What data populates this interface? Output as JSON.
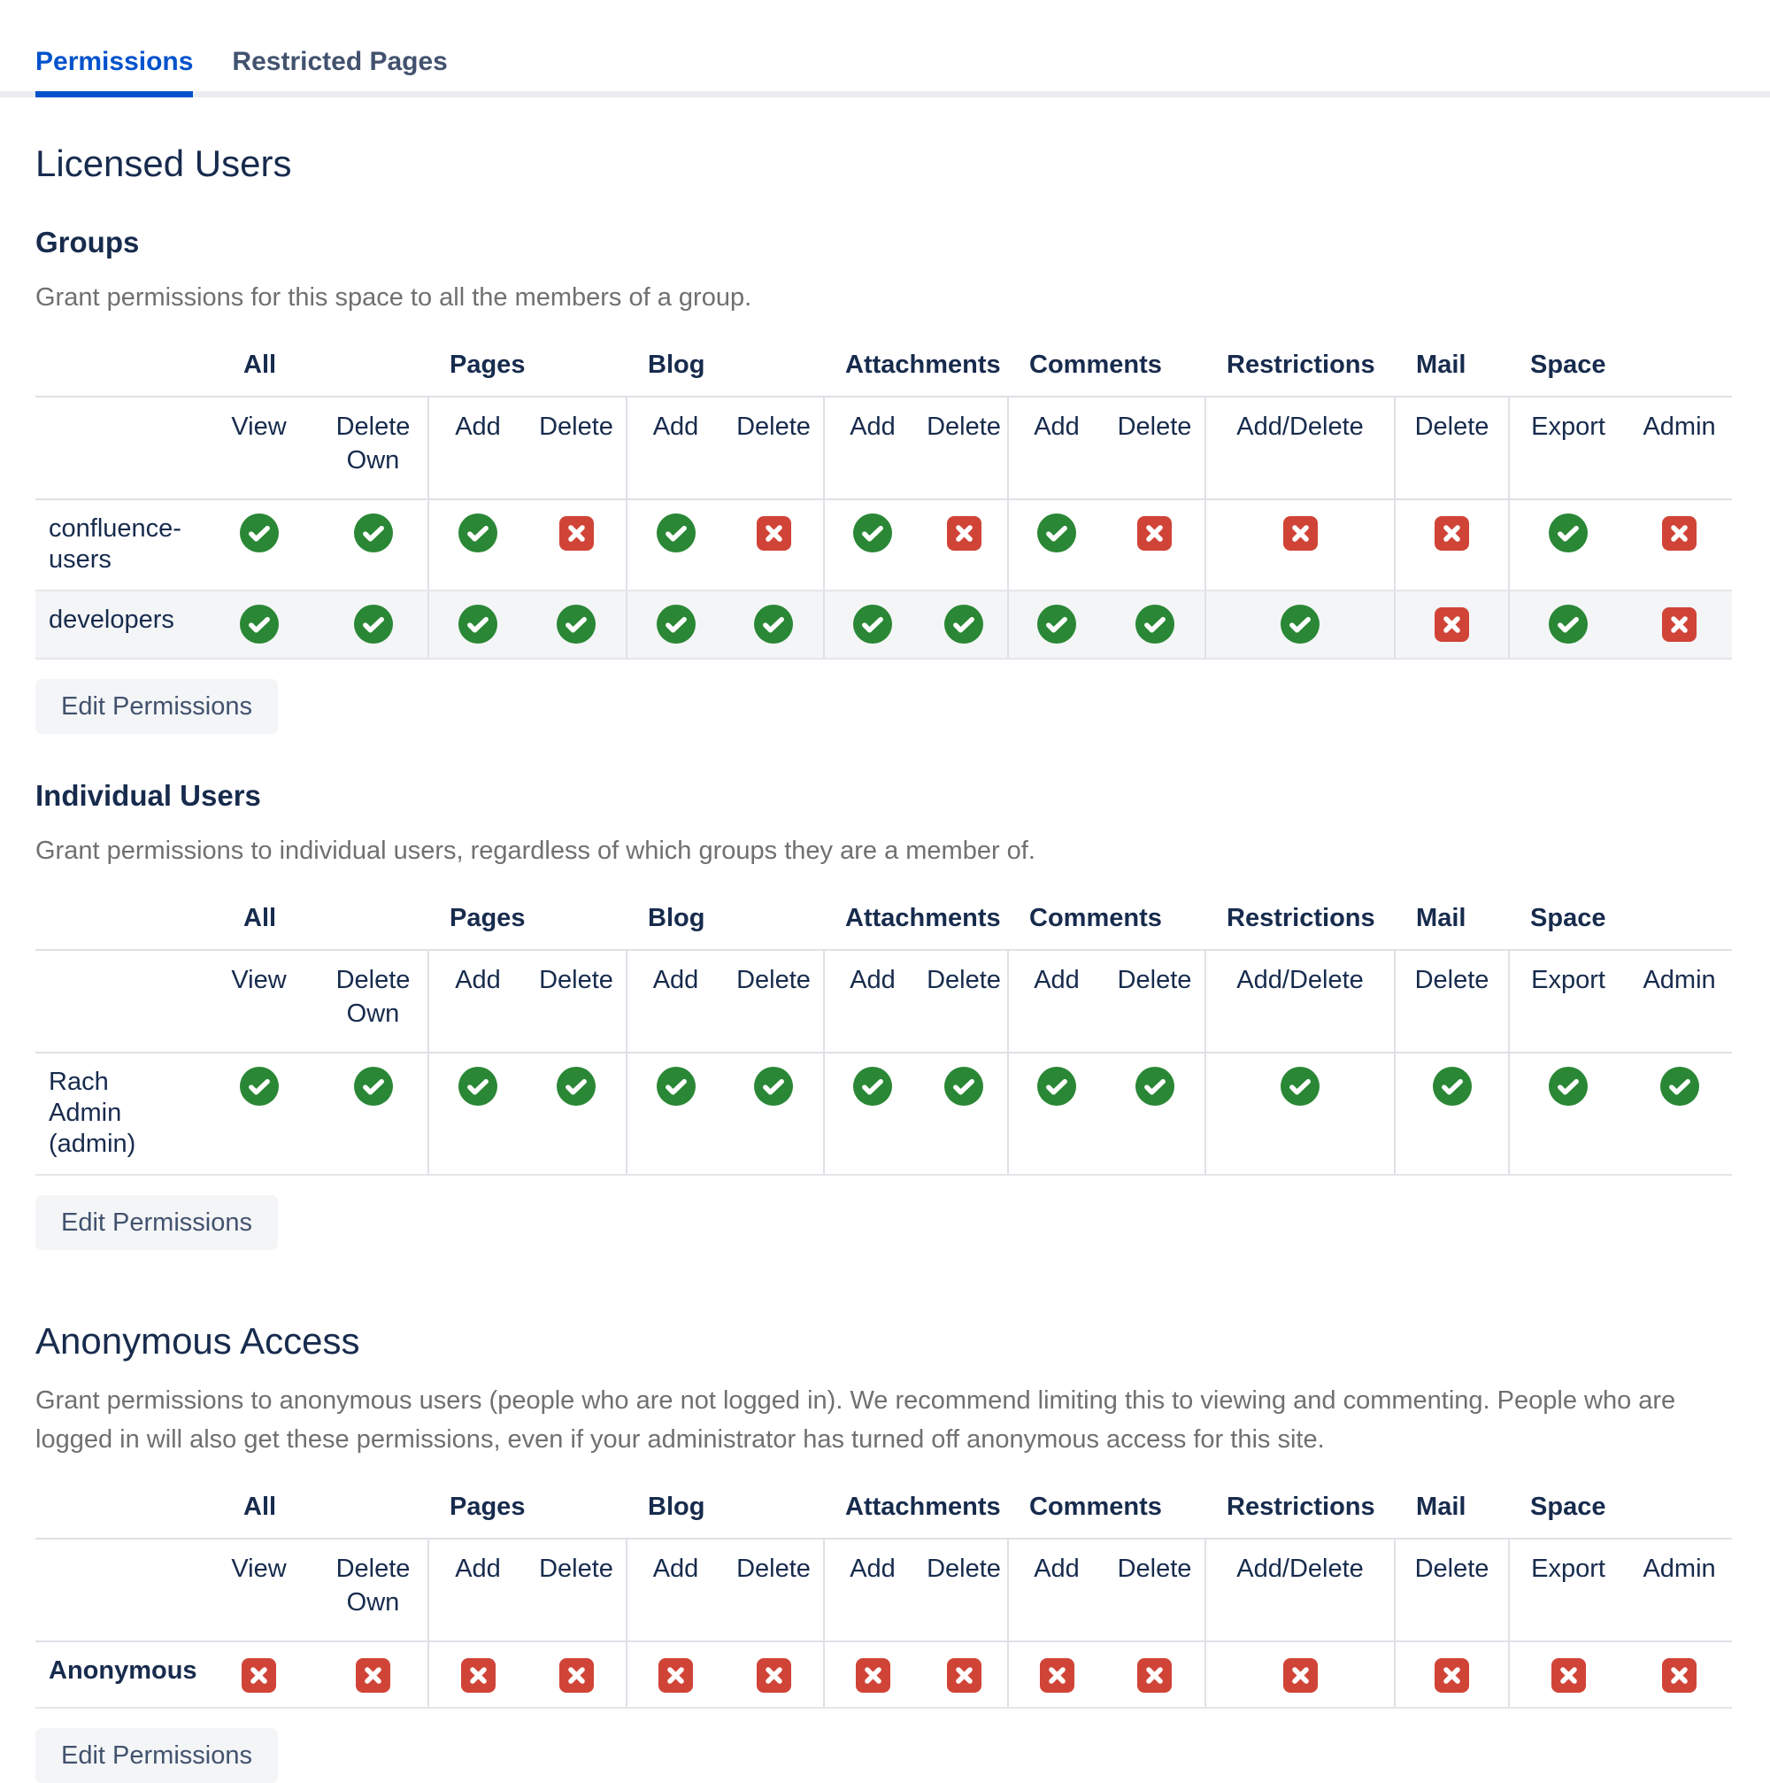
{
  "tabs": {
    "items": [
      {
        "label": "Permissions",
        "active": true
      },
      {
        "label": "Restricted Pages",
        "active": false
      }
    ]
  },
  "page_heading": "Licensed Users",
  "columns": {
    "groups": [
      {
        "label": "All",
        "span": 2
      },
      {
        "label": "Pages",
        "span": 2
      },
      {
        "label": "Blog",
        "span": 2
      },
      {
        "label": "Attachments",
        "span": 2
      },
      {
        "label": "Comments",
        "span": 2
      },
      {
        "label": "Restrictions",
        "span": 1
      },
      {
        "label": "Mail",
        "span": 1
      },
      {
        "label": "Space",
        "span": 2
      }
    ],
    "subheaders": [
      "View",
      "Delete Own",
      "Add",
      "Delete",
      "Add",
      "Delete",
      "Add",
      "Delete",
      "Add",
      "Delete",
      "Add/Delete",
      "Delete",
      "Export",
      "Admin"
    ]
  },
  "icon_legend": {
    "check": "permission granted",
    "cross": "permission denied"
  },
  "colors": {
    "granted_green": "#2A8735",
    "denied_red": "#D04437",
    "active_tab_blue": "#0052CC",
    "heading_navy": "#172B4D"
  },
  "sections": [
    {
      "heading": "Groups",
      "description": "Grant permissions for this space to all the members of a group.",
      "button_label": "Edit Permissions",
      "rows": [
        {
          "label": "confluence-users",
          "bold": false,
          "values": [
            "check",
            "check",
            "check",
            "cross",
            "check",
            "cross",
            "check",
            "cross",
            "check",
            "cross",
            "cross",
            "cross",
            "check",
            "cross"
          ]
        },
        {
          "label": "developers",
          "bold": false,
          "values": [
            "check",
            "check",
            "check",
            "check",
            "check",
            "check",
            "check",
            "check",
            "check",
            "check",
            "check",
            "cross",
            "check",
            "cross"
          ]
        }
      ]
    },
    {
      "heading": "Individual Users",
      "description": "Grant permissions to individual users, regardless of which groups they are a member of.",
      "button_label": "Edit Permissions",
      "rows": [
        {
          "label": "Rach Admin (admin)",
          "bold": false,
          "values": [
            "check",
            "check",
            "check",
            "check",
            "check",
            "check",
            "check",
            "check",
            "check",
            "check",
            "check",
            "check",
            "check",
            "check"
          ]
        }
      ]
    },
    {
      "heading": "Anonymous Access",
      "description": "Grant permissions to anonymous users (people who are not logged in). We recommend limiting this to viewing and commenting. People who are logged in will also get these permissions, even if your administrator has turned off anonymous access for this site.",
      "button_label": "Edit Permissions",
      "rows": [
        {
          "label": "Anonymous",
          "bold": true,
          "values": [
            "cross",
            "cross",
            "cross",
            "cross",
            "cross",
            "cross",
            "cross",
            "cross",
            "cross",
            "cross",
            "cross",
            "cross",
            "cross",
            "cross"
          ]
        }
      ]
    }
  ]
}
